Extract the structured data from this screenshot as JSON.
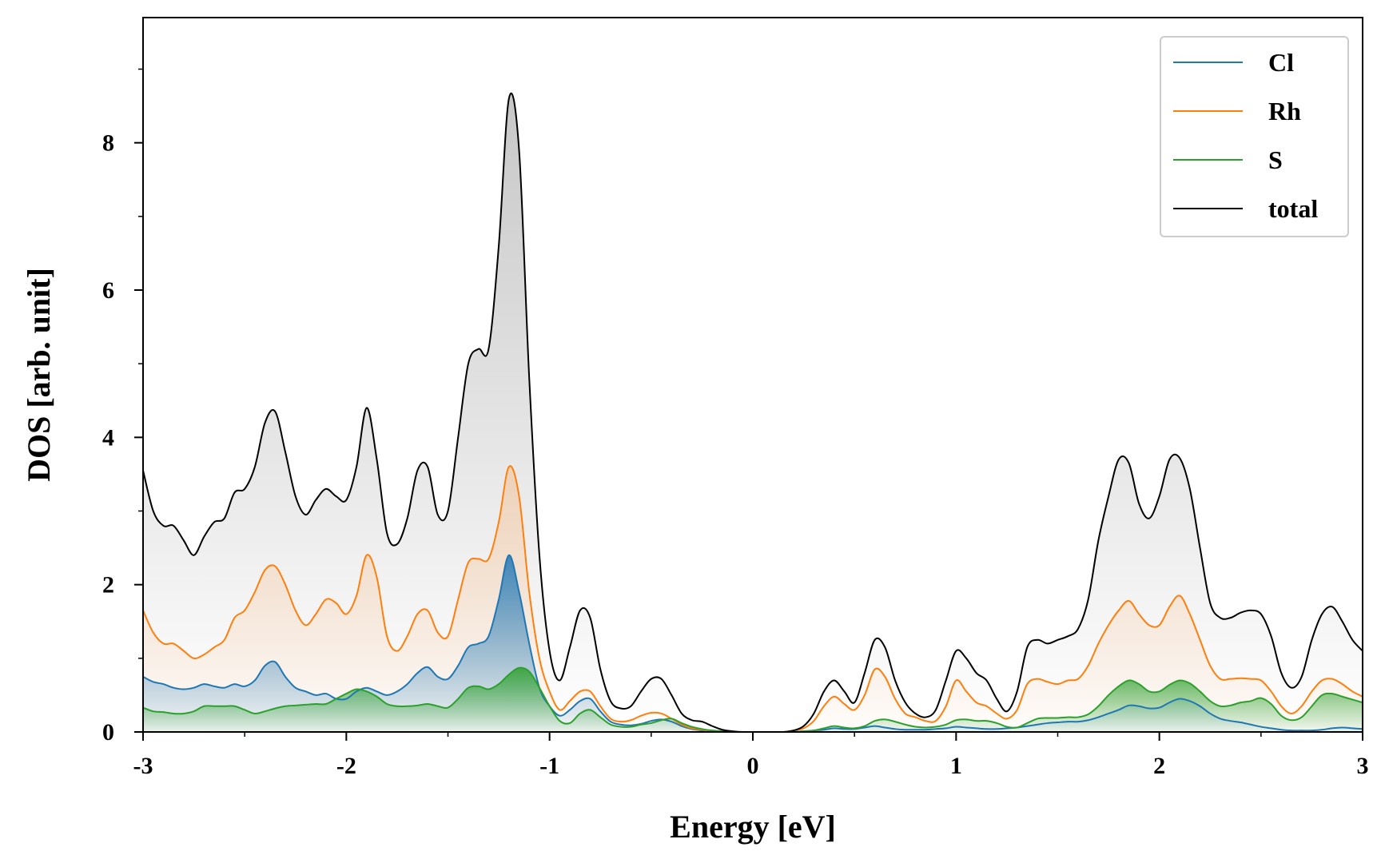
{
  "chart_data": {
    "type": "line",
    "title": "",
    "xlabel": "Energy [eV]",
    "ylabel": "DOS [arb. unit]",
    "xlim": [
      -3,
      3
    ],
    "ylim": [
      0,
      9.7
    ],
    "xticks": [
      -3,
      -2,
      -1,
      0,
      1,
      2,
      3
    ],
    "xtick_labels": [
      "-3",
      "-2",
      "-1",
      "0",
      "1",
      "2",
      "3"
    ],
    "yticks": [
      0,
      2,
      4,
      6,
      8
    ],
    "ytick_labels": [
      "0",
      "2",
      "4",
      "6",
      "8"
    ],
    "grid": false,
    "legend_position": "top-right",
    "x": [
      -3.0,
      -2.95,
      -2.9,
      -2.85,
      -2.8,
      -2.75,
      -2.7,
      -2.65,
      -2.6,
      -2.55,
      -2.5,
      -2.45,
      -2.4,
      -2.35,
      -2.3,
      -2.25,
      -2.2,
      -2.15,
      -2.1,
      -2.05,
      -2.0,
      -1.95,
      -1.9,
      -1.85,
      -1.8,
      -1.75,
      -1.7,
      -1.65,
      -1.6,
      -1.55,
      -1.5,
      -1.45,
      -1.4,
      -1.35,
      -1.3,
      -1.25,
      -1.2,
      -1.15,
      -1.1,
      -1.05,
      -1.0,
      -0.95,
      -0.9,
      -0.85,
      -0.8,
      -0.75,
      -0.7,
      -0.65,
      -0.6,
      -0.55,
      -0.5,
      -0.45,
      -0.4,
      -0.35,
      -0.3,
      -0.25,
      -0.2,
      -0.15,
      -0.1,
      -0.05,
      0.0,
      0.05,
      0.1,
      0.15,
      0.2,
      0.25,
      0.3,
      0.35,
      0.4,
      0.45,
      0.5,
      0.55,
      0.6,
      0.65,
      0.7,
      0.75,
      0.8,
      0.85,
      0.9,
      0.95,
      1.0,
      1.05,
      1.1,
      1.15,
      1.2,
      1.25,
      1.3,
      1.35,
      1.4,
      1.45,
      1.5,
      1.55,
      1.6,
      1.65,
      1.7,
      1.75,
      1.8,
      1.85,
      1.9,
      1.95,
      2.0,
      2.05,
      2.1,
      2.15,
      2.2,
      2.25,
      2.3,
      2.35,
      2.4,
      2.45,
      2.5,
      2.55,
      2.6,
      2.65,
      2.7,
      2.75,
      2.8,
      2.85,
      2.9,
      2.95,
      3.0
    ],
    "series": [
      {
        "name": "Cl",
        "color": "#1f77b4",
        "values": [
          0.75,
          0.68,
          0.65,
          0.6,
          0.58,
          0.6,
          0.65,
          0.62,
          0.6,
          0.65,
          0.62,
          0.7,
          0.9,
          0.95,
          0.75,
          0.6,
          0.55,
          0.5,
          0.52,
          0.45,
          0.45,
          0.55,
          0.6,
          0.55,
          0.5,
          0.55,
          0.65,
          0.8,
          0.88,
          0.75,
          0.72,
          0.9,
          1.15,
          1.2,
          1.3,
          1.8,
          2.4,
          1.9,
          1.2,
          0.6,
          0.35,
          0.22,
          0.3,
          0.42,
          0.45,
          0.28,
          0.14,
          0.1,
          0.09,
          0.11,
          0.15,
          0.17,
          0.14,
          0.08,
          0.04,
          0.02,
          0.01,
          0.0,
          0.0,
          0.0,
          0.0,
          0.0,
          0.0,
          0.0,
          0.0,
          0.01,
          0.02,
          0.03,
          0.05,
          0.04,
          0.04,
          0.06,
          0.08,
          0.06,
          0.04,
          0.03,
          0.03,
          0.03,
          0.04,
          0.05,
          0.07,
          0.06,
          0.05,
          0.04,
          0.04,
          0.05,
          0.06,
          0.08,
          0.1,
          0.12,
          0.13,
          0.14,
          0.14,
          0.16,
          0.2,
          0.25,
          0.3,
          0.36,
          0.35,
          0.32,
          0.33,
          0.4,
          0.45,
          0.42,
          0.35,
          0.25,
          0.18,
          0.15,
          0.13,
          0.1,
          0.07,
          0.05,
          0.03,
          0.02,
          0.02,
          0.02,
          0.03,
          0.05,
          0.06,
          0.05,
          0.04
        ]
      },
      {
        "name": "Rh",
        "color": "#ff7f0e",
        "values": [
          1.65,
          1.35,
          1.2,
          1.2,
          1.1,
          1.0,
          1.05,
          1.15,
          1.25,
          1.55,
          1.65,
          1.9,
          2.2,
          2.25,
          2.0,
          1.65,
          1.45,
          1.6,
          1.8,
          1.75,
          1.6,
          1.85,
          2.4,
          2.1,
          1.3,
          1.1,
          1.3,
          1.6,
          1.65,
          1.35,
          1.3,
          1.8,
          2.3,
          2.35,
          2.35,
          2.85,
          3.6,
          3.2,
          1.9,
          1.0,
          0.55,
          0.3,
          0.42,
          0.55,
          0.55,
          0.35,
          0.18,
          0.14,
          0.16,
          0.22,
          0.26,
          0.25,
          0.18,
          0.1,
          0.05,
          0.03,
          0.01,
          0.0,
          0.0,
          0.0,
          0.0,
          0.0,
          0.0,
          0.0,
          0.02,
          0.05,
          0.15,
          0.35,
          0.48,
          0.38,
          0.3,
          0.5,
          0.85,
          0.75,
          0.45,
          0.25,
          0.2,
          0.15,
          0.15,
          0.35,
          0.7,
          0.55,
          0.4,
          0.35,
          0.25,
          0.18,
          0.3,
          0.65,
          0.72,
          0.68,
          0.65,
          0.7,
          0.72,
          0.9,
          1.2,
          1.45,
          1.65,
          1.78,
          1.6,
          1.45,
          1.45,
          1.7,
          1.85,
          1.6,
          1.25,
          0.9,
          0.72,
          0.72,
          0.73,
          0.72,
          0.7,
          0.55,
          0.35,
          0.25,
          0.35,
          0.55,
          0.7,
          0.72,
          0.65,
          0.55,
          0.48
        ]
      },
      {
        "name": "S",
        "color": "#2ca02c",
        "values": [
          0.33,
          0.28,
          0.27,
          0.25,
          0.25,
          0.28,
          0.35,
          0.35,
          0.35,
          0.35,
          0.3,
          0.25,
          0.28,
          0.32,
          0.35,
          0.36,
          0.37,
          0.38,
          0.38,
          0.45,
          0.52,
          0.58,
          0.55,
          0.48,
          0.38,
          0.35,
          0.35,
          0.36,
          0.38,
          0.35,
          0.33,
          0.45,
          0.6,
          0.62,
          0.58,
          0.65,
          0.78,
          0.87,
          0.82,
          0.6,
          0.35,
          0.15,
          0.12,
          0.25,
          0.3,
          0.2,
          0.1,
          0.07,
          0.07,
          0.1,
          0.12,
          0.16,
          0.18,
          0.12,
          0.07,
          0.04,
          0.02,
          0.01,
          0.0,
          0.0,
          0.0,
          0.0,
          0.0,
          0.0,
          0.0,
          0.01,
          0.02,
          0.05,
          0.08,
          0.06,
          0.05,
          0.08,
          0.15,
          0.17,
          0.14,
          0.1,
          0.07,
          0.06,
          0.07,
          0.1,
          0.16,
          0.17,
          0.15,
          0.15,
          0.12,
          0.07,
          0.06,
          0.12,
          0.18,
          0.19,
          0.19,
          0.2,
          0.2,
          0.24,
          0.35,
          0.5,
          0.62,
          0.7,
          0.65,
          0.55,
          0.55,
          0.64,
          0.7,
          0.66,
          0.55,
          0.42,
          0.35,
          0.36,
          0.4,
          0.42,
          0.46,
          0.38,
          0.22,
          0.16,
          0.2,
          0.35,
          0.5,
          0.52,
          0.48,
          0.44,
          0.4
        ]
      },
      {
        "name": "total",
        "color": "#000000",
        "values": [
          3.55,
          3.0,
          2.8,
          2.8,
          2.6,
          2.4,
          2.65,
          2.85,
          2.9,
          3.25,
          3.3,
          3.6,
          4.2,
          4.35,
          3.8,
          3.2,
          2.95,
          3.15,
          3.3,
          3.2,
          3.15,
          3.6,
          4.4,
          3.7,
          2.7,
          2.55,
          2.9,
          3.55,
          3.6,
          2.95,
          3.0,
          4.0,
          5.0,
          5.2,
          5.2,
          6.6,
          8.6,
          7.9,
          4.8,
          2.4,
          1.1,
          0.7,
          1.15,
          1.65,
          1.55,
          0.85,
          0.42,
          0.32,
          0.35,
          0.55,
          0.72,
          0.72,
          0.5,
          0.25,
          0.16,
          0.14,
          0.08,
          0.03,
          0.01,
          0.0,
          0.0,
          0.0,
          0.0,
          0.0,
          0.02,
          0.08,
          0.25,
          0.55,
          0.7,
          0.55,
          0.4,
          0.8,
          1.25,
          1.15,
          0.7,
          0.4,
          0.25,
          0.2,
          0.3,
          0.7,
          1.1,
          1.0,
          0.8,
          0.7,
          0.45,
          0.28,
          0.55,
          1.15,
          1.25,
          1.2,
          1.25,
          1.3,
          1.4,
          1.8,
          2.6,
          3.2,
          3.7,
          3.65,
          3.1,
          2.9,
          3.2,
          3.7,
          3.72,
          3.3,
          2.5,
          1.75,
          1.55,
          1.55,
          1.62,
          1.65,
          1.6,
          1.3,
          0.8,
          0.6,
          0.75,
          1.25,
          1.6,
          1.7,
          1.5,
          1.25,
          1.1
        ]
      }
    ]
  }
}
